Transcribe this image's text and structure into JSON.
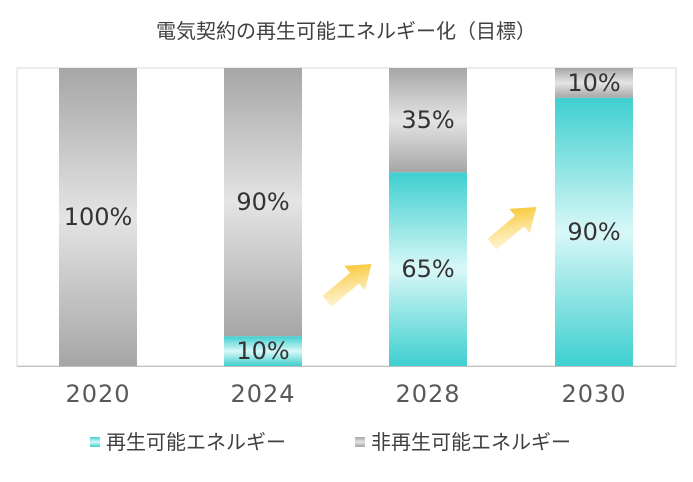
{
  "chart_data": {
    "type": "bar",
    "stacked": true,
    "title": "電気契約の再生可能エネルギー化（目標）",
    "categories": [
      "2020",
      "2024",
      "2028",
      "2030"
    ],
    "series": [
      {
        "name": "再生可能エネルギー",
        "values": [
          0,
          10,
          65,
          90
        ],
        "labels": [
          "",
          "10%",
          "65%",
          "90%"
        ],
        "color": "#3ecfcf"
      },
      {
        "name": "非再生可能エネルギー",
        "values": [
          100,
          90,
          35,
          10
        ],
        "labels": [
          "100%",
          "90%",
          "35%",
          "10%"
        ],
        "color": "#a6a6a6"
      }
    ],
    "ylim": [
      0,
      100
    ],
    "grid": false,
    "legend_position": "bottom",
    "annotations": [
      "arrow-between-2024-2028",
      "arrow-between-2028-2030"
    ]
  }
}
